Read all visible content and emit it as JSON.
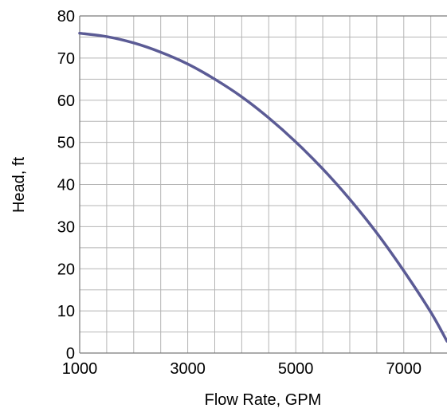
{
  "chart_data": {
    "type": "line",
    "title": "",
    "xlabel": "Flow Rate, GPM",
    "ylabel": "Head, ft",
    "xlim": [
      1000,
      7800
    ],
    "ylim": [
      0,
      80
    ],
    "x_ticks": [
      1000,
      3000,
      5000,
      7000
    ],
    "x_tick_labels": [
      "1000",
      "3000",
      "5000",
      "7000"
    ],
    "y_ticks": [
      0,
      10,
      20,
      30,
      40,
      50,
      60,
      70,
      80
    ],
    "y_tick_labels": [
      "0",
      "10",
      "20",
      "30",
      "40",
      "50",
      "60",
      "70",
      "80"
    ],
    "x_minor_step": 500,
    "y_minor_step": 5,
    "grid": true,
    "line_color": "#5b5b95",
    "series": [
      {
        "x": [
          1000,
          1500,
          2000,
          2500,
          3000,
          3500,
          4000,
          4500,
          5000,
          5500,
          6000,
          6500,
          7000,
          7500,
          7800
        ],
        "y": [
          75.9,
          75.1,
          73.6,
          71.4,
          68.6,
          65.0,
          60.8,
          55.8,
          50.1,
          43.7,
          36.5,
          28.5,
          19.5,
          9.7,
          2.8
        ]
      }
    ]
  }
}
